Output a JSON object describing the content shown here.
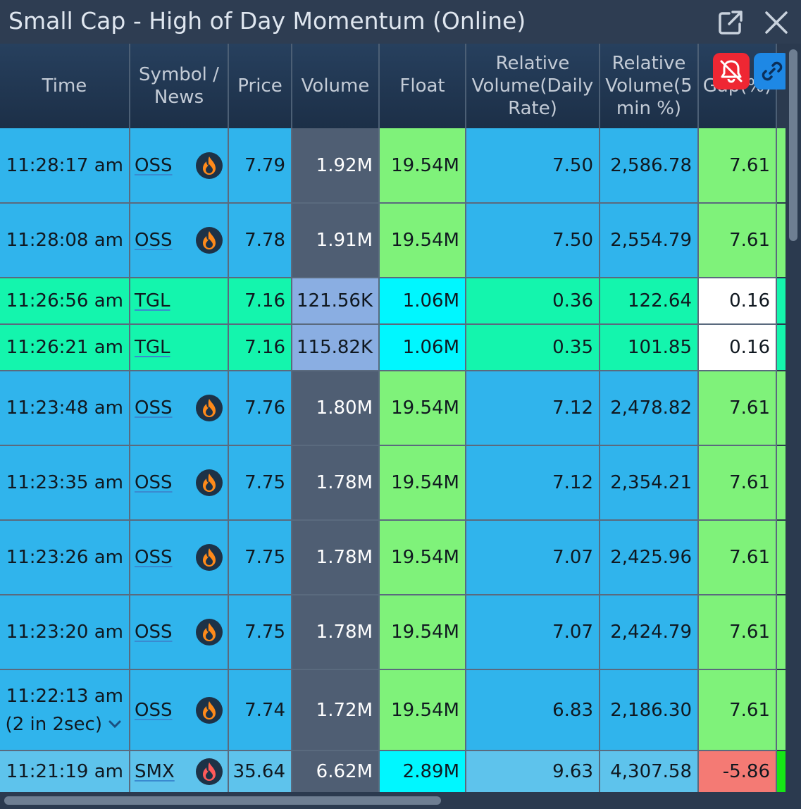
{
  "window": {
    "title": "Small Cap - High of Day Momentum (Online)"
  },
  "columns": [
    {
      "key": "time",
      "lines": [
        "Time"
      ]
    },
    {
      "key": "symbol",
      "lines": [
        "Symbol /",
        "News"
      ]
    },
    {
      "key": "price",
      "lines": [
        "Price"
      ]
    },
    {
      "key": "volume",
      "lines": [
        "Volume"
      ]
    },
    {
      "key": "float",
      "lines": [
        "Float"
      ]
    },
    {
      "key": "rvol_daily",
      "lines": [
        "Relative",
        "Volume(Daily",
        "Rate)"
      ]
    },
    {
      "key": "rvol_5min",
      "lines": [
        "Relative",
        "Volume(5",
        "min %)"
      ]
    },
    {
      "key": "gap",
      "lines": [
        "Gap(%)"
      ]
    }
  ],
  "rows": [
    {
      "time": "11:28:17 am",
      "symbol": "OSS",
      "news": "flame-icon",
      "price": "7.79",
      "volume": "1.92M",
      "float": "19.54M",
      "rvol_daily": "7.50",
      "rvol_5min": "2,586.78",
      "gap": "7.61"
    },
    {
      "time": "11:28:08 am",
      "symbol": "OSS",
      "news": "flame-icon",
      "price": "7.78",
      "volume": "1.91M",
      "float": "19.54M",
      "rvol_daily": "7.50",
      "rvol_5min": "2,554.79",
      "gap": "7.61"
    },
    {
      "time": "11:26:56 am",
      "symbol": "TGL",
      "news": "",
      "price": "7.16",
      "volume": "121.56K",
      "float": "1.06M",
      "rvol_daily": "0.36",
      "rvol_5min": "122.64",
      "gap": "0.16"
    },
    {
      "time": "11:26:21 am",
      "symbol": "TGL",
      "news": "",
      "price": "7.16",
      "volume": "115.82K",
      "float": "1.06M",
      "rvol_daily": "0.35",
      "rvol_5min": "101.85",
      "gap": "0.16"
    },
    {
      "time": "11:23:48 am",
      "symbol": "OSS",
      "news": "flame-icon",
      "price": "7.76",
      "volume": "1.80M",
      "float": "19.54M",
      "rvol_daily": "7.12",
      "rvol_5min": "2,478.82",
      "gap": "7.61"
    },
    {
      "time": "11:23:35 am",
      "symbol": "OSS",
      "news": "flame-icon",
      "price": "7.75",
      "volume": "1.78M",
      "float": "19.54M",
      "rvol_daily": "7.12",
      "rvol_5min": "2,354.21",
      "gap": "7.61"
    },
    {
      "time": "11:23:26 am",
      "symbol": "OSS",
      "news": "flame-icon",
      "price": "7.75",
      "volume": "1.78M",
      "float": "19.54M",
      "rvol_daily": "7.07",
      "rvol_5min": "2,425.96",
      "gap": "7.61"
    },
    {
      "time": "11:23:20 am",
      "symbol": "OSS",
      "news": "flame-icon",
      "price": "7.75",
      "volume": "1.78M",
      "float": "19.54M",
      "rvol_daily": "7.07",
      "rvol_5min": "2,424.79",
      "gap": "7.61"
    },
    {
      "time": "11:22:13 am",
      "time_note": "(2 in 2sec)",
      "symbol": "OSS",
      "news": "flame-icon",
      "price": "7.74",
      "volume": "1.72M",
      "float": "19.54M",
      "rvol_daily": "6.83",
      "rvol_5min": "2,186.30",
      "gap": "7.61"
    },
    {
      "time": "11:21:19 am",
      "symbol": "SMX",
      "news": "flame-icon-red",
      "price": "35.64",
      "volume": "6.62M",
      "float": "2.89M",
      "rvol_daily": "9.63",
      "rvol_5min": "4,307.58",
      "gap": "-5.86"
    }
  ],
  "colors": {
    "oss_bg": "#30b4ec",
    "tgl_bg": "#14f5ad",
    "smx_bg": "#5ec3ec",
    "volume_dark": "#4f5e73",
    "volume_light": "#8aaee2",
    "float_green": "#7ff27a",
    "float_cyan": "#00f7ff",
    "gap_green": "#7ff27a",
    "gap_white": "#ffffff",
    "gap_red": "#f47a74"
  },
  "controls": {
    "popout_icon": "popout-icon",
    "close_icon": "close-icon",
    "bell_icon": "bell-off-icon",
    "link_icon": "link-icon"
  }
}
